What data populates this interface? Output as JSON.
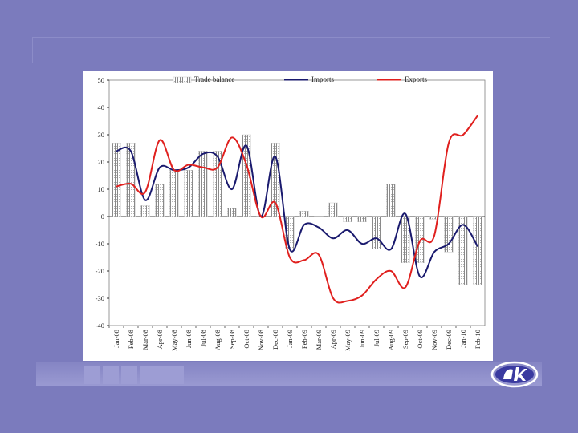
{
  "chart_data": {
    "type": "bar+line",
    "ylim": [
      -40,
      50
    ],
    "yticks": [
      50,
      40,
      30,
      20,
      10,
      0,
      -10,
      -20,
      -30,
      -40
    ],
    "categories": [
      "Jan-08",
      "Feb-08",
      "Mar-08",
      "Apr-08",
      "May-08",
      "Jun-08",
      "Jul-08",
      "Aug-08",
      "Sep-08",
      "Oct-08",
      "Nov-08",
      "Dec-08",
      "Jan-09",
      "Feb-09",
      "Mar-09",
      "Apr-09",
      "May-09",
      "Jun-09",
      "Jul-09",
      "Aug-09",
      "Sep-09",
      "Oct-09",
      "Nov-09",
      "Dec-09",
      "Jan-10",
      "Feb-10"
    ],
    "series": [
      {
        "name": "Trade balance",
        "kind": "bar",
        "color": "#9a9a9a",
        "values": [
          27,
          27,
          4,
          12,
          17,
          17,
          24,
          24,
          3,
          30,
          0,
          27,
          -12,
          2,
          0,
          5,
          -2,
          -2,
          -12,
          12,
          -17,
          -17,
          -1,
          -13,
          -25,
          -25
        ]
      },
      {
        "name": "Imports",
        "kind": "line",
        "color": "#1a1a6e",
        "values": [
          24,
          24,
          6,
          18,
          17,
          18,
          23,
          22,
          10,
          26,
          0,
          22,
          -12,
          -3,
          -4,
          -8,
          -5,
          -10,
          -8,
          -12,
          1,
          -22,
          -13,
          -10,
          -3,
          -11
        ]
      },
      {
        "name": "Exports",
        "kind": "line",
        "color": "#e0201e",
        "values": [
          11,
          12,
          9,
          28,
          17,
          19,
          18,
          18,
          29,
          19,
          0,
          5,
          -15,
          -16,
          -14,
          -30,
          -31,
          -29,
          -23,
          -20,
          -26,
          -9,
          -7,
          27,
          30,
          37
        ]
      }
    ]
  }
}
